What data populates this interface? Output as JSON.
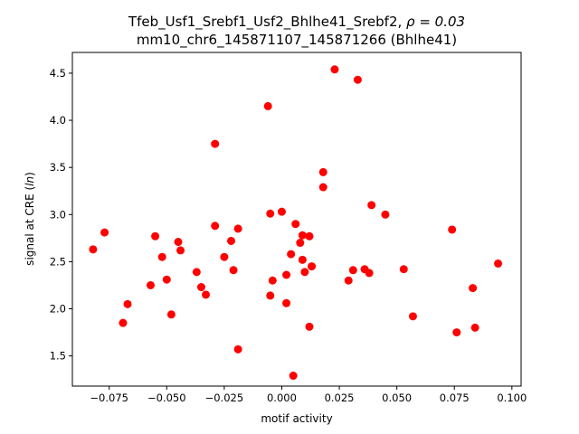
{
  "chart_data": {
    "type": "scatter",
    "title_line1_prefix": "Tfeb_Usf1_Srebf1_Usf2_Bhlhe41_Srebf2, ",
    "title_line1_rho": "ρ = 0.03",
    "title_line2": "mm10_chr6_145871107_145871266 (Bhlhe41)",
    "xlabel": "motif activity",
    "ylabel": "signal at CRE (ln)",
    "xlim": [
      -0.091,
      0.104
    ],
    "ylim": [
      1.18,
      4.72
    ],
    "xticks": [
      -0.075,
      -0.05,
      -0.025,
      0.0,
      0.025,
      0.05,
      0.075,
      0.1
    ],
    "xtick_labels": [
      "−0.075",
      "−0.050",
      "−0.025",
      "0.000",
      "0.025",
      "0.050",
      "0.075",
      "0.100"
    ],
    "yticks": [
      1.5,
      2.0,
      2.5,
      3.0,
      3.5,
      4.0,
      4.5
    ],
    "ytick_labels": [
      "1.5",
      "2.0",
      "2.5",
      "3.0",
      "3.5",
      "4.0",
      "4.5"
    ],
    "grid": false,
    "marker_color": "#ff0000",
    "points": [
      {
        "x": -0.082,
        "y": 2.63
      },
      {
        "x": -0.077,
        "y": 2.81
      },
      {
        "x": -0.069,
        "y": 1.85
      },
      {
        "x": -0.067,
        "y": 2.05
      },
      {
        "x": -0.057,
        "y": 2.25
      },
      {
        "x": -0.055,
        "y": 2.77
      },
      {
        "x": -0.052,
        "y": 2.55
      },
      {
        "x": -0.05,
        "y": 2.31
      },
      {
        "x": -0.048,
        "y": 1.94
      },
      {
        "x": -0.045,
        "y": 2.71
      },
      {
        "x": -0.044,
        "y": 2.62
      },
      {
        "x": -0.037,
        "y": 2.39
      },
      {
        "x": -0.035,
        "y": 2.23
      },
      {
        "x": -0.033,
        "y": 2.15
      },
      {
        "x": -0.029,
        "y": 3.75
      },
      {
        "x": -0.029,
        "y": 2.88
      },
      {
        "x": -0.025,
        "y": 2.55
      },
      {
        "x": -0.022,
        "y": 2.72
      },
      {
        "x": -0.021,
        "y": 2.41
      },
      {
        "x": -0.019,
        "y": 2.85
      },
      {
        "x": -0.019,
        "y": 1.57
      },
      {
        "x": -0.006,
        "y": 4.15
      },
      {
        "x": -0.005,
        "y": 3.01
      },
      {
        "x": -0.005,
        "y": 2.14
      },
      {
        "x": -0.004,
        "y": 2.3
      },
      {
        "x": 0.0,
        "y": 3.03
      },
      {
        "x": 0.002,
        "y": 2.36
      },
      {
        "x": 0.002,
        "y": 2.06
      },
      {
        "x": 0.004,
        "y": 2.58
      },
      {
        "x": 0.005,
        "y": 1.29
      },
      {
        "x": 0.006,
        "y": 2.9
      },
      {
        "x": 0.008,
        "y": 2.7
      },
      {
        "x": 0.009,
        "y": 2.78
      },
      {
        "x": 0.009,
        "y": 2.52
      },
      {
        "x": 0.01,
        "y": 2.39
      },
      {
        "x": 0.012,
        "y": 2.77
      },
      {
        "x": 0.012,
        "y": 1.81
      },
      {
        "x": 0.013,
        "y": 2.45
      },
      {
        "x": 0.018,
        "y": 3.45
      },
      {
        "x": 0.018,
        "y": 3.29
      },
      {
        "x": 0.023,
        "y": 4.54
      },
      {
        "x": 0.029,
        "y": 2.3
      },
      {
        "x": 0.031,
        "y": 2.41
      },
      {
        "x": 0.033,
        "y": 4.43
      },
      {
        "x": 0.036,
        "y": 2.42
      },
      {
        "x": 0.038,
        "y": 2.38
      },
      {
        "x": 0.039,
        "y": 3.1
      },
      {
        "x": 0.045,
        "y": 3.0
      },
      {
        "x": 0.053,
        "y": 2.42
      },
      {
        "x": 0.057,
        "y": 1.92
      },
      {
        "x": 0.074,
        "y": 2.84
      },
      {
        "x": 0.076,
        "y": 1.75
      },
      {
        "x": 0.083,
        "y": 2.22
      },
      {
        "x": 0.084,
        "y": 1.8
      },
      {
        "x": 0.094,
        "y": 2.48
      }
    ]
  }
}
